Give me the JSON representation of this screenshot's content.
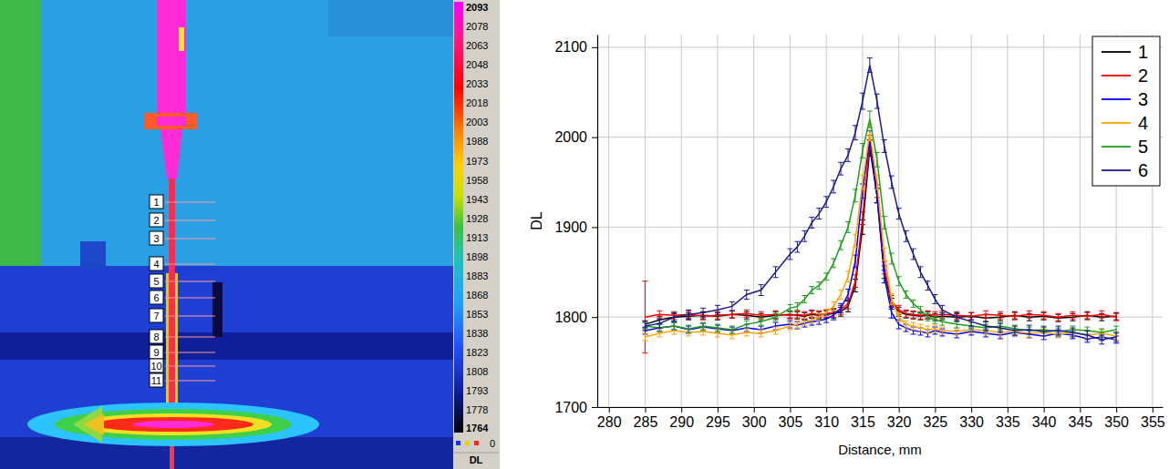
{
  "chart_data": [
    {
      "type": "thermal_image",
      "labels": [
        "1",
        "2",
        "3",
        "4",
        "5",
        "6",
        "7",
        "8",
        "9",
        "10",
        "11"
      ],
      "colorbar": {
        "lim": [
          1764,
          2093
        ],
        "ticks": [
          2093,
          2078,
          2063,
          2048,
          2033,
          2018,
          2003,
          1988,
          1973,
          1958,
          1943,
          1928,
          1913,
          1898,
          1883,
          1868,
          1853,
          1838,
          1823,
          1808,
          1793,
          1778,
          1764
        ],
        "title": "DL",
        "readout": 0
      }
    },
    {
      "type": "line",
      "xlabel": "Distance, mm",
      "ylabel": "DL",
      "xlim": [
        278.4,
        356.4
      ],
      "ylim": [
        1700,
        2114
      ],
      "xticks": [
        280,
        285,
        290,
        295,
        300,
        305,
        310,
        315,
        320,
        325,
        330,
        335,
        340,
        345,
        350,
        355
      ],
      "yticks": [
        1700,
        1800,
        1900,
        2000,
        2100
      ],
      "grid": true,
      "legend": "upper right",
      "x": [
        285,
        287,
        289,
        291,
        293,
        295,
        297,
        299,
        301,
        303,
        305,
        306,
        307,
        308,
        309,
        310,
        311,
        312,
        313,
        314,
        315,
        316,
        317,
        318,
        319,
        320,
        321,
        322,
        323,
        324,
        325,
        326,
        328,
        330,
        332,
        334,
        336,
        338,
        340,
        342,
        344,
        346,
        348,
        350
      ],
      "series": [
        {
          "name": "1",
          "color": "#000000",
          "values": [
            1792,
            1797,
            1800,
            1801,
            1802,
            1801,
            1803,
            1802,
            1800,
            1802,
            1803,
            1802,
            1801,
            1803,
            1802,
            1803,
            1804,
            1806,
            1812,
            1835,
            1900,
            1988,
            1935,
            1850,
            1815,
            1806,
            1803,
            1802,
            1801,
            1802,
            1800,
            1801,
            1800,
            1801,
            1799,
            1800,
            1802,
            1800,
            1801,
            1799,
            1800,
            1802,
            1800,
            1801
          ],
          "errors": [
            4,
            4,
            4,
            4,
            4,
            4,
            4,
            4,
            4,
            4,
            4,
            4,
            4,
            4,
            4,
            4,
            5,
            5,
            6,
            7,
            8,
            9,
            8,
            7,
            6,
            5,
            4,
            4,
            4,
            4,
            4,
            4,
            4,
            4,
            4,
            4,
            4,
            4,
            4,
            4,
            4,
            4,
            4,
            4
          ]
        },
        {
          "name": "2",
          "color": "#ff0000",
          "values": [
            1800,
            1803,
            1802,
            1803,
            1801,
            1802,
            1803,
            1804,
            1802,
            1803,
            1802,
            1803,
            1802,
            1804,
            1803,
            1804,
            1805,
            1808,
            1815,
            1840,
            1910,
            1995,
            1940,
            1855,
            1818,
            1808,
            1804,
            1803,
            1802,
            1803,
            1802,
            1803,
            1802,
            1801,
            1803,
            1802,
            1801,
            1803,
            1802,
            1800,
            1802,
            1801,
            1803,
            1800
          ],
          "errors": [
            40,
            4,
            4,
            4,
            4,
            4,
            4,
            4,
            4,
            4,
            4,
            4,
            4,
            4,
            4,
            4,
            5,
            5,
            6,
            7,
            7,
            7,
            7,
            7,
            6,
            5,
            4,
            4,
            4,
            4,
            4,
            4,
            4,
            4,
            4,
            4,
            4,
            4,
            4,
            4,
            4,
            4,
            4,
            4
          ]
        },
        {
          "name": "3",
          "color": "#0000ff",
          "values": [
            1785,
            1788,
            1790,
            1786,
            1789,
            1787,
            1785,
            1788,
            1786,
            1790,
            1792,
            1791,
            1793,
            1795,
            1796,
            1798,
            1802,
            1810,
            1825,
            1862,
            1940,
            1998,
            1935,
            1845,
            1805,
            1792,
            1788,
            1785,
            1784,
            1782,
            1785,
            1783,
            1781,
            1784,
            1782,
            1780,
            1783,
            1781,
            1779,
            1782,
            1780,
            1776,
            1778,
            1775
          ],
          "errors": [
            4,
            4,
            4,
            4,
            4,
            4,
            4,
            4,
            4,
            4,
            4,
            4,
            4,
            4,
            4,
            4,
            5,
            5,
            6,
            7,
            8,
            9,
            8,
            7,
            6,
            5,
            4,
            4,
            4,
            4,
            4,
            4,
            4,
            4,
            4,
            4,
            4,
            4,
            4,
            4,
            4,
            4,
            4,
            4
          ]
        },
        {
          "name": "4",
          "color": "#ffa500",
          "values": [
            1778,
            1782,
            1785,
            1783,
            1784,
            1782,
            1780,
            1783,
            1782,
            1785,
            1790,
            1792,
            1795,
            1797,
            1800,
            1805,
            1812,
            1825,
            1845,
            1885,
            1950,
            2005,
            1950,
            1870,
            1820,
            1800,
            1792,
            1790,
            1788,
            1786,
            1787,
            1785,
            1784,
            1786,
            1785,
            1783,
            1784,
            1782,
            1783,
            1781,
            1783,
            1780,
            1782,
            1779
          ],
          "errors": [
            4,
            4,
            4,
            4,
            4,
            4,
            4,
            4,
            4,
            4,
            4,
            4,
            4,
            4,
            4,
            4,
            5,
            5,
            6,
            7,
            8,
            9,
            8,
            7,
            6,
            5,
            4,
            4,
            4,
            4,
            4,
            4,
            4,
            4,
            4,
            4,
            4,
            4,
            4,
            4,
            4,
            4,
            4,
            4
          ]
        },
        {
          "name": "5",
          "color": "#1f9e1f",
          "values": [
            1790,
            1788,
            1790,
            1787,
            1790,
            1788,
            1786,
            1792,
            1795,
            1800,
            1810,
            1812,
            1820,
            1830,
            1835,
            1845,
            1860,
            1880,
            1900,
            1935,
            1985,
            2020,
            1975,
            1905,
            1865,
            1840,
            1825,
            1815,
            1808,
            1800,
            1797,
            1795,
            1792,
            1790,
            1788,
            1790,
            1787,
            1785,
            1786,
            1784,
            1786,
            1785,
            1783,
            1786
          ],
          "errors": [
            4,
            4,
            4,
            4,
            4,
            4,
            4,
            4,
            4,
            4,
            4,
            4,
            4,
            4,
            4,
            4,
            5,
            5,
            6,
            7,
            8,
            9,
            8,
            7,
            6,
            5,
            4,
            4,
            4,
            4,
            4,
            4,
            4,
            4,
            4,
            4,
            4,
            4,
            4,
            4,
            4,
            4,
            4,
            4
          ]
        },
        {
          "name": "6",
          "color": "#1a1a8c",
          "values": [
            1790,
            1793,
            1800,
            1803,
            1805,
            1808,
            1812,
            1825,
            1830,
            1850,
            1870,
            1878,
            1890,
            1905,
            1915,
            1928,
            1945,
            1965,
            1980,
            2005,
            2040,
            2080,
            2040,
            1990,
            1950,
            1915,
            1890,
            1870,
            1850,
            1835,
            1820,
            1808,
            1800,
            1795,
            1790,
            1788,
            1785,
            1786,
            1784,
            1785,
            1783,
            1780,
            1775,
            1778
          ],
          "errors": [
            5,
            5,
            5,
            5,
            5,
            5,
            5,
            5,
            6,
            6,
            6,
            6,
            6,
            6,
            6,
            6,
            7,
            7,
            7,
            8,
            9,
            8,
            8,
            7,
            7,
            6,
            6,
            6,
            6,
            5,
            5,
            5,
            5,
            5,
            5,
            5,
            5,
            5,
            5,
            5,
            5,
            5,
            5,
            5
          ]
        }
      ]
    }
  ]
}
